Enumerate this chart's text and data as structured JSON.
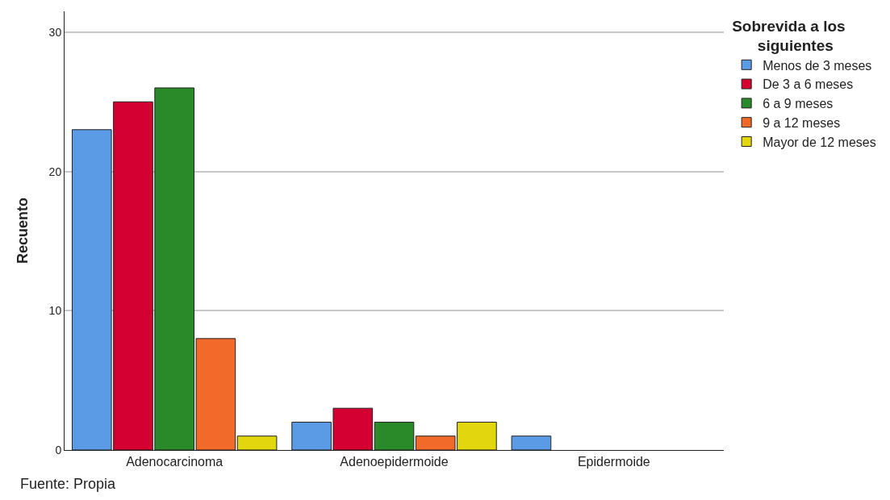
{
  "chart_data": {
    "type": "bar",
    "ylabel": "Recuento",
    "legend_title": "Sobrevida a los siguientes",
    "categories": [
      "Adenocarcinoma",
      "Adenoepidermoide",
      "Epidermoide"
    ],
    "series": [
      {
        "name": "Menos de 3 meses",
        "color": "#5b9be6",
        "values": [
          23,
          2,
          1
        ]
      },
      {
        "name": "De 3 a 6 meses",
        "color": "#d50032",
        "values": [
          25,
          3,
          0
        ]
      },
      {
        "name": "6 a 9 meses",
        "color": "#2a8a2a",
        "values": [
          26,
          2,
          0
        ]
      },
      {
        "name": "9 a 12 meses",
        "color": "#f26a2a",
        "values": [
          8,
          1,
          0
        ]
      },
      {
        "name": "Mayor de 12 meses",
        "color": "#e2d70f",
        "values": [
          1,
          2,
          0
        ]
      }
    ],
    "ylim": [
      0,
      31.5
    ],
    "yticks": [
      0,
      10,
      20,
      30
    ],
    "grid": "y",
    "legend": "top right",
    "annotations": [
      "Fuente: Propia"
    ]
  }
}
